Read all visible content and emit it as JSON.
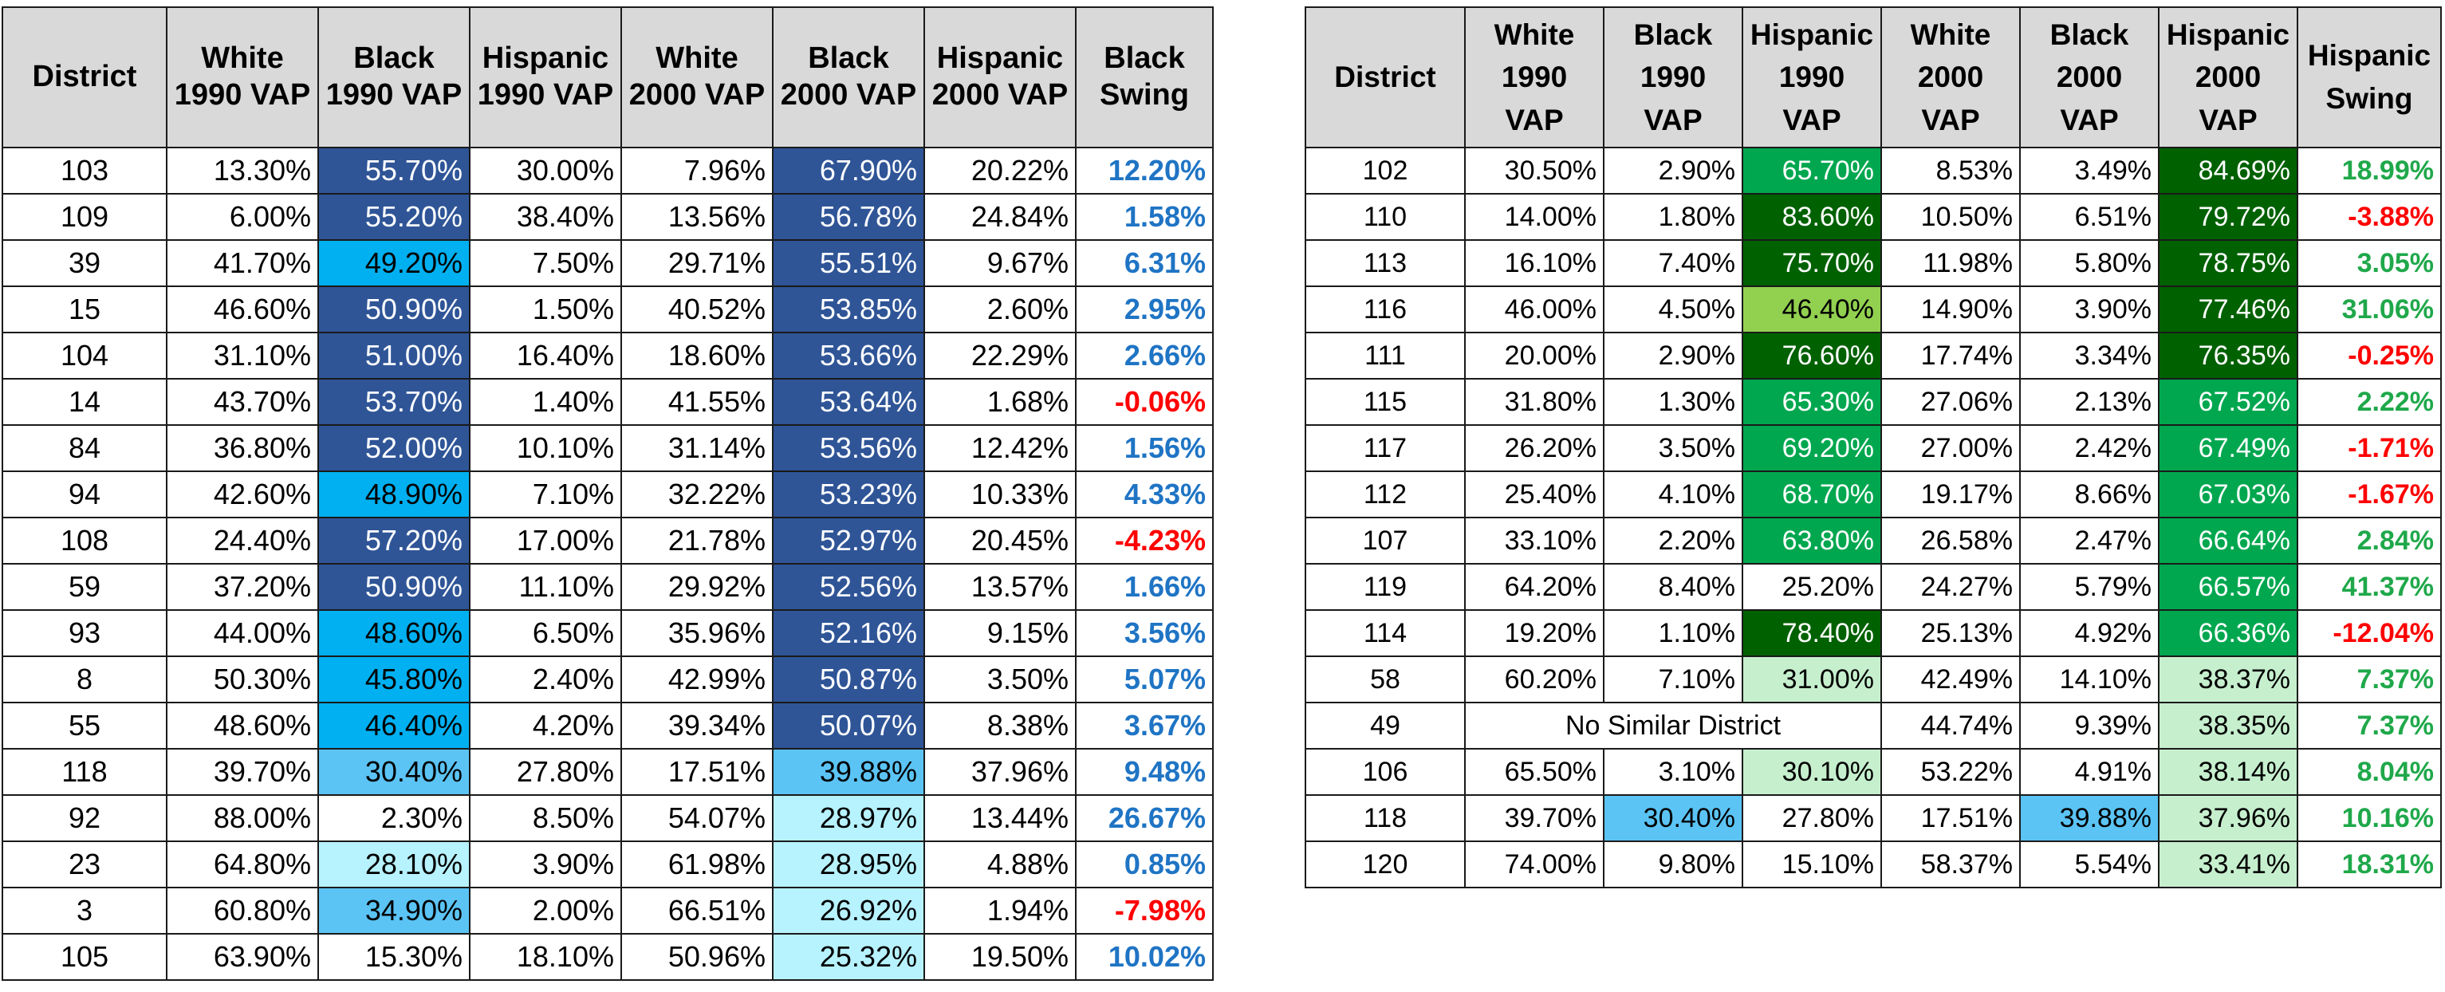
{
  "colors": {
    "black_high": "#2F5597",
    "black_mid": "#00B0F0",
    "black_low": "#5BC4F5",
    "black_vlow": "#B7F2FF",
    "hisp_vhigh": "#006100",
    "hisp_high": "#00A74F",
    "hisp_mid": "#92D050",
    "hisp_low": "#C6EFCE"
  },
  "left_table": {
    "headers": [
      {
        "l1": "District",
        "l2": ""
      },
      {
        "l1": "White",
        "l2": "1990 VAP"
      },
      {
        "l1": "Black",
        "l2": "1990 VAP"
      },
      {
        "l1": "Hispanic",
        "l2": "1990 VAP"
      },
      {
        "l1": "White",
        "l2": "2000 VAP"
      },
      {
        "l1": "Black",
        "l2": "2000 VAP"
      },
      {
        "l1": "Hispanic",
        "l2": "2000 VAP"
      },
      {
        "l1": "Black",
        "l2": "Swing"
      }
    ],
    "rows": [
      {
        "d": "103",
        "w90": "13.30%",
        "b90": "55.70%",
        "h90": "30.00%",
        "w00": "7.96%",
        "b00": "67.90%",
        "h00": "20.22%",
        "sw": "12.20%",
        "b90c": "black_high",
        "b00c": "black_high",
        "swc": "pos-b"
      },
      {
        "d": "109",
        "w90": "6.00%",
        "b90": "55.20%",
        "h90": "38.40%",
        "w00": "13.56%",
        "b00": "56.78%",
        "h00": "24.84%",
        "sw": "1.58%",
        "b90c": "black_high",
        "b00c": "black_high",
        "swc": "pos-b"
      },
      {
        "d": "39",
        "w90": "41.70%",
        "b90": "49.20%",
        "h90": "7.50%",
        "w00": "29.71%",
        "b00": "55.51%",
        "h00": "9.67%",
        "sw": "6.31%",
        "b90c": "black_mid",
        "b00c": "black_high",
        "swc": "pos-b"
      },
      {
        "d": "15",
        "w90": "46.60%",
        "b90": "50.90%",
        "h90": "1.50%",
        "w00": "40.52%",
        "b00": "53.85%",
        "h00": "2.60%",
        "sw": "2.95%",
        "b90c": "black_high",
        "b00c": "black_high",
        "swc": "pos-b"
      },
      {
        "d": "104",
        "w90": "31.10%",
        "b90": "51.00%",
        "h90": "16.40%",
        "w00": "18.60%",
        "b00": "53.66%",
        "h00": "22.29%",
        "sw": "2.66%",
        "b90c": "black_high",
        "b00c": "black_high",
        "swc": "pos-b"
      },
      {
        "d": "14",
        "w90": "43.70%",
        "b90": "53.70%",
        "h90": "1.40%",
        "w00": "41.55%",
        "b00": "53.64%",
        "h00": "1.68%",
        "sw": "-0.06%",
        "b90c": "black_high",
        "b00c": "black_high",
        "swc": "neg"
      },
      {
        "d": "84",
        "w90": "36.80%",
        "b90": "52.00%",
        "h90": "10.10%",
        "w00": "31.14%",
        "b00": "53.56%",
        "h00": "12.42%",
        "sw": "1.56%",
        "b90c": "black_high",
        "b00c": "black_high",
        "swc": "pos-b"
      },
      {
        "d": "94",
        "w90": "42.60%",
        "b90": "48.90%",
        "h90": "7.10%",
        "w00": "32.22%",
        "b00": "53.23%",
        "h00": "10.33%",
        "sw": "4.33%",
        "b90c": "black_mid",
        "b00c": "black_high",
        "swc": "pos-b"
      },
      {
        "d": "108",
        "w90": "24.40%",
        "b90": "57.20%",
        "h90": "17.00%",
        "w00": "21.78%",
        "b00": "52.97%",
        "h00": "20.45%",
        "sw": "-4.23%",
        "b90c": "black_high",
        "b00c": "black_high",
        "swc": "neg"
      },
      {
        "d": "59",
        "w90": "37.20%",
        "b90": "50.90%",
        "h90": "11.10%",
        "w00": "29.92%",
        "b00": "52.56%",
        "h00": "13.57%",
        "sw": "1.66%",
        "b90c": "black_high",
        "b00c": "black_high",
        "swc": "pos-b"
      },
      {
        "d": "93",
        "w90": "44.00%",
        "b90": "48.60%",
        "h90": "6.50%",
        "w00": "35.96%",
        "b00": "52.16%",
        "h00": "9.15%",
        "sw": "3.56%",
        "b90c": "black_mid",
        "b00c": "black_high",
        "swc": "pos-b"
      },
      {
        "d": "8",
        "w90": "50.30%",
        "b90": "45.80%",
        "h90": "2.40%",
        "w00": "42.99%",
        "b00": "50.87%",
        "h00": "3.50%",
        "sw": "5.07%",
        "b90c": "black_mid",
        "b00c": "black_high",
        "swc": "pos-b"
      },
      {
        "d": "55",
        "w90": "48.60%",
        "b90": "46.40%",
        "h90": "4.20%",
        "w00": "39.34%",
        "b00": "50.07%",
        "h00": "8.38%",
        "sw": "3.67%",
        "b90c": "black_mid",
        "b00c": "black_high",
        "swc": "pos-b"
      },
      {
        "d": "118",
        "w90": "39.70%",
        "b90": "30.40%",
        "h90": "27.80%",
        "w00": "17.51%",
        "b00": "39.88%",
        "h00": "37.96%",
        "sw": "9.48%",
        "b90c": "black_low",
        "b00c": "black_low",
        "swc": "pos-b"
      },
      {
        "d": "92",
        "w90": "88.00%",
        "b90": "2.30%",
        "h90": "8.50%",
        "w00": "54.07%",
        "b00": "28.97%",
        "h00": "13.44%",
        "sw": "26.67%",
        "b90c": "",
        "b00c": "black_vlow",
        "swc": "pos-b"
      },
      {
        "d": "23",
        "w90": "64.80%",
        "b90": "28.10%",
        "h90": "3.90%",
        "w00": "61.98%",
        "b00": "28.95%",
        "h00": "4.88%",
        "sw": "0.85%",
        "b90c": "black_vlow",
        "b00c": "black_vlow",
        "swc": "pos-b"
      },
      {
        "d": "3",
        "w90": "60.80%",
        "b90": "34.90%",
        "h90": "2.00%",
        "w00": "66.51%",
        "b00": "26.92%",
        "h00": "1.94%",
        "sw": "-7.98%",
        "b90c": "black_low",
        "b00c": "black_vlow",
        "swc": "neg"
      },
      {
        "d": "105",
        "w90": "63.90%",
        "b90": "15.30%",
        "h90": "18.10%",
        "w00": "50.96%",
        "b00": "25.32%",
        "h00": "19.50%",
        "sw": "10.02%",
        "b90c": "",
        "b00c": "black_vlow",
        "swc": "pos-b"
      }
    ]
  },
  "right_table": {
    "headers": [
      {
        "l1": "District",
        "l2": "",
        "l3": ""
      },
      {
        "l1": "White",
        "l2": "1990",
        "l3": "VAP"
      },
      {
        "l1": "Black",
        "l2": "1990",
        "l3": "VAP"
      },
      {
        "l1": "Hispanic",
        "l2": "1990",
        "l3": "VAP"
      },
      {
        "l1": "White",
        "l2": "2000",
        "l3": "VAP"
      },
      {
        "l1": "Black",
        "l2": "2000",
        "l3": "VAP"
      },
      {
        "l1": "Hispanic",
        "l2": "2000",
        "l3": "VAP"
      },
      {
        "l1": "Hispanic",
        "l2": "Swing",
        "l3": ""
      }
    ],
    "no_similar_text": "No Similar District",
    "rows": [
      {
        "d": "102",
        "w90": "30.50%",
        "b90": "2.90%",
        "h90": "65.70%",
        "w00": "8.53%",
        "b00": "3.49%",
        "h00": "84.69%",
        "sw": "18.99%",
        "h90c": "hisp_high",
        "h00c": "hisp_vhigh",
        "b90c": "",
        "b00c": "",
        "swc": "pos-g"
      },
      {
        "d": "110",
        "w90": "14.00%",
        "b90": "1.80%",
        "h90": "83.60%",
        "w00": "10.50%",
        "b00": "6.51%",
        "h00": "79.72%",
        "sw": "-3.88%",
        "h90c": "hisp_vhigh",
        "h00c": "hisp_vhigh",
        "b90c": "",
        "b00c": "",
        "swc": "neg"
      },
      {
        "d": "113",
        "w90": "16.10%",
        "b90": "7.40%",
        "h90": "75.70%",
        "w00": "11.98%",
        "b00": "5.80%",
        "h00": "78.75%",
        "sw": "3.05%",
        "h90c": "hisp_vhigh",
        "h00c": "hisp_vhigh",
        "b90c": "",
        "b00c": "",
        "swc": "pos-g"
      },
      {
        "d": "116",
        "w90": "46.00%",
        "b90": "4.50%",
        "h90": "46.40%",
        "w00": "14.90%",
        "b00": "3.90%",
        "h00": "77.46%",
        "sw": "31.06%",
        "h90c": "hisp_mid",
        "h00c": "hisp_vhigh",
        "b90c": "",
        "b00c": "",
        "swc": "pos-g"
      },
      {
        "d": "111",
        "w90": "20.00%",
        "b90": "2.90%",
        "h90": "76.60%",
        "w00": "17.74%",
        "b00": "3.34%",
        "h00": "76.35%",
        "sw": "-0.25%",
        "h90c": "hisp_vhigh",
        "h00c": "hisp_vhigh",
        "b90c": "",
        "b00c": "",
        "swc": "neg"
      },
      {
        "d": "115",
        "w90": "31.80%",
        "b90": "1.30%",
        "h90": "65.30%",
        "w00": "27.06%",
        "b00": "2.13%",
        "h00": "67.52%",
        "sw": "2.22%",
        "h90c": "hisp_high",
        "h00c": "hisp_high",
        "b90c": "",
        "b00c": "",
        "swc": "pos-g"
      },
      {
        "d": "117",
        "w90": "26.20%",
        "b90": "3.50%",
        "h90": "69.20%",
        "w00": "27.00%",
        "b00": "2.42%",
        "h00": "67.49%",
        "sw": "-1.71%",
        "h90c": "hisp_high",
        "h00c": "hisp_high",
        "b90c": "",
        "b00c": "",
        "swc": "neg"
      },
      {
        "d": "112",
        "w90": "25.40%",
        "b90": "4.10%",
        "h90": "68.70%",
        "w00": "19.17%",
        "b00": "8.66%",
        "h00": "67.03%",
        "sw": "-1.67%",
        "h90c": "hisp_high",
        "h00c": "hisp_high",
        "b90c": "",
        "b00c": "",
        "swc": "neg"
      },
      {
        "d": "107",
        "w90": "33.10%",
        "b90": "2.20%",
        "h90": "63.80%",
        "w00": "26.58%",
        "b00": "2.47%",
        "h00": "66.64%",
        "sw": "2.84%",
        "h90c": "hisp_high",
        "h00c": "hisp_high",
        "b90c": "",
        "b00c": "",
        "swc": "pos-g"
      },
      {
        "d": "119",
        "w90": "64.20%",
        "b90": "8.40%",
        "h90": "25.20%",
        "w00": "24.27%",
        "b00": "5.79%",
        "h00": "66.57%",
        "sw": "41.37%",
        "h90c": "",
        "h00c": "hisp_high",
        "b90c": "",
        "b00c": "",
        "swc": "pos-g"
      },
      {
        "d": "114",
        "w90": "19.20%",
        "b90": "1.10%",
        "h90": "78.40%",
        "w00": "25.13%",
        "b00": "4.92%",
        "h00": "66.36%",
        "sw": "-12.04%",
        "h90c": "hisp_vhigh",
        "h00c": "hisp_high",
        "b90c": "",
        "b00c": "",
        "swc": "neg"
      },
      {
        "d": "58",
        "w90": "60.20%",
        "b90": "7.10%",
        "h90": "31.00%",
        "w00": "42.49%",
        "b00": "14.10%",
        "h00": "38.37%",
        "sw": "7.37%",
        "h90c": "hisp_low",
        "h00c": "hisp_low",
        "b90c": "",
        "b00c": "",
        "swc": "pos-g"
      },
      {
        "d": "49",
        "merged": true,
        "w00": "44.74%",
        "b00": "9.39%",
        "h00": "38.35%",
        "sw": "7.37%",
        "h00c": "hisp_low",
        "b00c": "",
        "swc": "pos-g"
      },
      {
        "d": "106",
        "w90": "65.50%",
        "b90": "3.10%",
        "h90": "30.10%",
        "w00": "53.22%",
        "b00": "4.91%",
        "h00": "38.14%",
        "sw": "8.04%",
        "h90c": "hisp_low",
        "h00c": "hisp_low",
        "b90c": "",
        "b00c": "",
        "swc": "pos-g"
      },
      {
        "d": "118",
        "w90": "39.70%",
        "b90": "30.40%",
        "h90": "27.80%",
        "w00": "17.51%",
        "b00": "39.88%",
        "h00": "37.96%",
        "sw": "10.16%",
        "h90c": "",
        "h00c": "hisp_low",
        "b90c": "black_low",
        "b00c": "black_low",
        "swc": "pos-g"
      },
      {
        "d": "120",
        "w90": "74.00%",
        "b90": "9.80%",
        "h90": "15.10%",
        "w00": "58.37%",
        "b00": "5.54%",
        "h00": "33.41%",
        "sw": "18.31%",
        "h90c": "",
        "h00c": "hisp_low",
        "b90c": "",
        "b00c": "",
        "swc": "pos-g"
      }
    ]
  }
}
